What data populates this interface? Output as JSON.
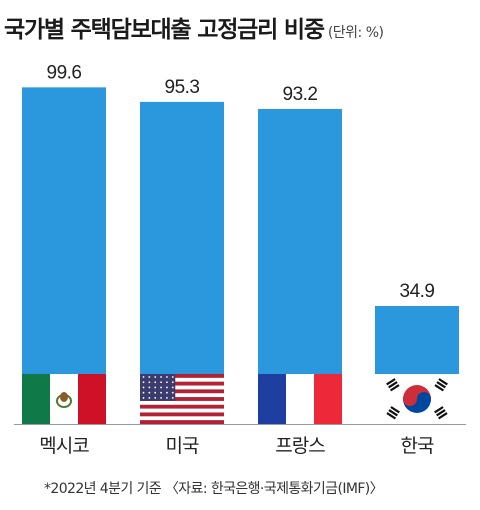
{
  "title": "국가별 주택담보대출 고정금리 비중",
  "unit": "(단위: %)",
  "note": "*2022년 4분기 기준 〈자료: 한국은행·국제통화기금(IMF)〉",
  "colors": {
    "bar": "#2b97dd",
    "text": "#222222"
  },
  "chart_data": {
    "type": "bar",
    "title": "국가별 주택담보대출 고정금리 비중",
    "categories": [
      "멕시코",
      "미국",
      "프랑스",
      "한국"
    ],
    "values": [
      99.6,
      95.3,
      93.2,
      34.9
    ],
    "value_labels": [
      "99.6",
      "95.3",
      "93.2",
      "34.9"
    ],
    "flags": [
      "mexico-flag-icon",
      "usa-flag-icon",
      "france-flag-icon",
      "korea-flag-icon"
    ],
    "ylim": [
      0,
      100
    ],
    "grid": false,
    "legend": "none"
  }
}
